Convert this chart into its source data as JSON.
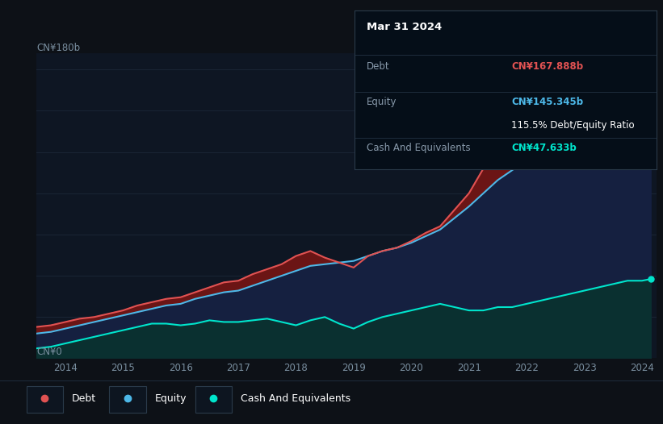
{
  "background_color": "#0d1117",
  "plot_bg_color": "#0e1623",
  "grid_color": "#1a2535",
  "title_label": "CN¥180b",
  "zero_label": "CN¥0",
  "x_ticks": [
    2014,
    2015,
    2016,
    2017,
    2018,
    2019,
    2020,
    2021,
    2022,
    2023,
    2024
  ],
  "debt_color": "#e05252",
  "equity_color": "#4db8e8",
  "cash_color": "#00e5cc",
  "debt_fill_color": "#6b1515",
  "equity_fill_color": "#152040",
  "cash_fill_color": "#0a3030",
  "tooltip_bg": "#050e18",
  "tooltip_border": "#2a3a4a",
  "tooltip_title": "Mar 31 2024",
  "tooltip_debt_label": "Debt",
  "tooltip_debt_value": "CN¥167.888b",
  "tooltip_equity_label": "Equity",
  "tooltip_equity_value": "CN¥145.345b",
  "tooltip_ratio": "115.5% Debt/Equity Ratio",
  "tooltip_cash_label": "Cash And Equivalents",
  "tooltip_cash_value": "CN¥47.633b",
  "legend_labels": [
    "Debt",
    "Equity",
    "Cash And Equivalents"
  ],
  "debt_data_years": [
    2013.5,
    2013.75,
    2014.0,
    2014.25,
    2014.5,
    2014.75,
    2015.0,
    2015.25,
    2015.5,
    2015.75,
    2016.0,
    2016.25,
    2016.5,
    2016.75,
    2017.0,
    2017.25,
    2017.5,
    2017.75,
    2018.0,
    2018.25,
    2018.5,
    2018.75,
    2019.0,
    2019.25,
    2019.5,
    2019.75,
    2020.0,
    2020.25,
    2020.5,
    2020.75,
    2021.0,
    2021.25,
    2021.5,
    2021.75,
    2022.0,
    2022.25,
    2022.5,
    2022.75,
    2023.0,
    2023.25,
    2023.5,
    2023.75,
    2024.0,
    2024.15
  ],
  "debt_data_values": [
    19,
    20,
    22,
    24,
    25,
    27,
    29,
    32,
    34,
    36,
    37,
    40,
    43,
    46,
    47,
    51,
    54,
    57,
    62,
    65,
    61,
    58,
    55,
    62,
    65,
    67,
    71,
    76,
    80,
    90,
    100,
    115,
    123,
    128,
    134,
    140,
    148,
    152,
    158,
    163,
    168,
    160,
    155,
    168
  ],
  "equity_data_years": [
    2013.5,
    2013.75,
    2014.0,
    2014.25,
    2014.5,
    2014.75,
    2015.0,
    2015.25,
    2015.5,
    2015.75,
    2016.0,
    2016.25,
    2016.5,
    2016.75,
    2017.0,
    2017.25,
    2017.5,
    2017.75,
    2018.0,
    2018.25,
    2018.5,
    2018.75,
    2019.0,
    2019.25,
    2019.5,
    2019.75,
    2020.0,
    2020.25,
    2020.5,
    2020.75,
    2021.0,
    2021.25,
    2021.5,
    2021.75,
    2022.0,
    2022.25,
    2022.5,
    2022.75,
    2023.0,
    2023.25,
    2023.5,
    2023.75,
    2024.0,
    2024.15
  ],
  "equity_data_values": [
    15,
    16,
    18,
    20,
    22,
    24,
    26,
    28,
    30,
    32,
    33,
    36,
    38,
    40,
    41,
    44,
    47,
    50,
    53,
    56,
    57,
    58,
    59,
    62,
    65,
    67,
    70,
    74,
    78,
    85,
    92,
    100,
    108,
    114,
    120,
    125,
    130,
    134,
    138,
    140,
    142,
    140,
    142,
    145
  ],
  "cash_data_years": [
    2013.5,
    2013.75,
    2014.0,
    2014.25,
    2014.5,
    2014.75,
    2015.0,
    2015.25,
    2015.5,
    2015.75,
    2016.0,
    2016.25,
    2016.5,
    2016.75,
    2017.0,
    2017.25,
    2017.5,
    2017.75,
    2018.0,
    2018.25,
    2018.5,
    2018.75,
    2019.0,
    2019.25,
    2019.5,
    2019.75,
    2020.0,
    2020.25,
    2020.5,
    2020.75,
    2021.0,
    2021.25,
    2021.5,
    2021.75,
    2022.0,
    2022.25,
    2022.5,
    2022.75,
    2023.0,
    2023.25,
    2023.5,
    2023.75,
    2024.0,
    2024.15
  ],
  "cash_data_values": [
    6,
    7,
    9,
    11,
    13,
    15,
    17,
    19,
    21,
    21,
    20,
    21,
    23,
    22,
    22,
    23,
    24,
    22,
    20,
    23,
    25,
    21,
    18,
    22,
    25,
    27,
    29,
    31,
    33,
    31,
    29,
    29,
    31,
    31,
    33,
    35,
    37,
    39,
    41,
    43,
    45,
    47,
    47,
    48
  ],
  "ylim": [
    0,
    185
  ],
  "xlim": [
    2013.5,
    2024.25
  ]
}
